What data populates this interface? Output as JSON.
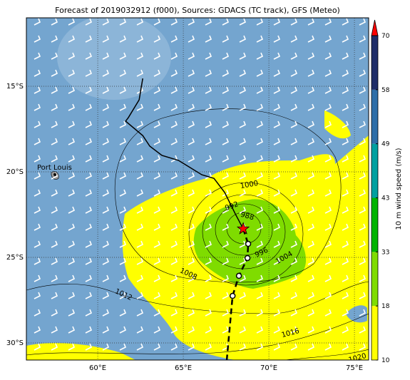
{
  "title": "Forecast of 2019032912 (f000), Sources: GDACS (TC track), GFS (Meteo)",
  "map": {
    "lon_range": [
      55.83,
      75.83
    ],
    "lat_range": [
      -31,
      -11
    ],
    "lon_ticks": [
      {
        "value": 60,
        "label": "60°E"
      },
      {
        "value": 65,
        "label": "65°E"
      },
      {
        "value": 70,
        "label": "70°E"
      },
      {
        "value": 75,
        "label": "75°E"
      }
    ],
    "lat_ticks": [
      {
        "value": -15,
        "label": "15°S"
      },
      {
        "value": -20,
        "label": "20°S"
      },
      {
        "value": -25,
        "label": "25°S"
      },
      {
        "value": -30,
        "label": "30°S"
      }
    ],
    "place": {
      "label": "Port Louis",
      "lon": 57.5,
      "lat": -20.16
    },
    "past_track": {
      "lon": [
        62.63,
        62.42,
        61.79,
        61.63,
        62.63,
        63.04,
        63.75,
        64.71,
        66.08,
        66.79,
        67.42,
        68.04,
        68.5
      ],
      "lat": [
        -14.54,
        -15.79,
        -16.83,
        -17.04,
        -17.88,
        -18.5,
        -19.04,
        -19.33,
        -20.17,
        -20.38,
        -21.21,
        -22.46,
        -23.33
      ]
    },
    "forecast_track": {
      "lon": [
        68.5,
        68.79,
        68.75,
        68.25,
        67.88,
        67.54
      ],
      "lat": [
        -23.33,
        -24.21,
        -25.04,
        -26.08,
        -27.25,
        -31
      ]
    },
    "isobar_labels": [
      "1000",
      "992",
      "988",
      "996",
      "1004",
      "1008",
      "1012",
      "1016",
      "1020"
    ]
  },
  "colorbar": {
    "label": "10 m wind speed (m/s)",
    "levels": [
      10,
      18,
      33,
      43,
      49,
      58,
      70
    ],
    "colors": [
      "#ffff00",
      "#7fdc00",
      "#00b400",
      "#00a0a0",
      "#2e6ea8",
      "#1f2d68"
    ],
    "extend_color": "#ff0000"
  }
}
